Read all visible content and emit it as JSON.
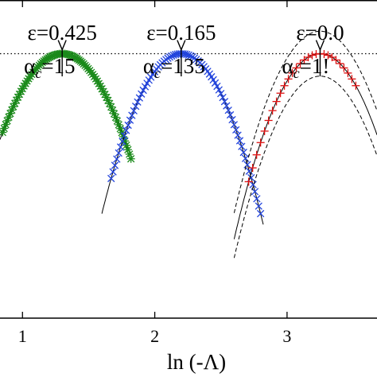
{
  "chart_data": {
    "type": "scatter",
    "title": "",
    "xlabel": "ln (-Λ)",
    "ylabel": "",
    "xlim": [
      0.83,
      3.68
    ],
    "ylim": [
      0,
      1.2
    ],
    "x_ticks": [
      1,
      2,
      3
    ],
    "x_tick_labels": [
      "1",
      "2",
      "3"
    ],
    "reference_line": {
      "y": 1.0,
      "style": "dotted"
    },
    "annotations": [
      {
        "line1": "ε=0.425",
        "line2_sym": "α",
        "line2_sub": "c",
        "line2_rest": "=15",
        "arrow_x": 1.3
      },
      {
        "line1": "ε=0.165",
        "line2_sym": "α",
        "line2_sub": "c",
        "line2_rest": "=135",
        "arrow_x": 2.2
      },
      {
        "line1": "ε=0.0",
        "line2_sym": "α",
        "line2_sub": "c",
        "line2_rest": "=1!",
        "arrow_x": 3.25
      }
    ],
    "series": [
      {
        "marker": "asterisk",
        "color": "#1a8a1a",
        "peak_x": 1.3,
        "peak_y": 1.0,
        "curvature": 1.47,
        "x_from": 0.83,
        "x_to": 1.8,
        "points_from": 0.85,
        "points_to": 1.82,
        "n_points": 85
      },
      {
        "marker": "x",
        "color": "#2244dd",
        "peak_x": 2.2,
        "peak_y": 1.0,
        "curvature": 1.68,
        "x_from": 1.6,
        "x_to": 2.82,
        "points_from": 1.67,
        "points_to": 2.8,
        "n_points": 80
      },
      {
        "marker": "plus",
        "color": "#dd1111",
        "peak_x": 3.25,
        "peak_y": 1.0,
        "curvature": 1.66,
        "x_from": 2.6,
        "x_to": 3.68,
        "points_from": 2.71,
        "points_to": 3.52,
        "n_points": 28,
        "band": {
          "peak_offset": 0.085,
          "curvature_factor": 0.98
        }
      }
    ],
    "fit_curves": {
      "color": "#000000",
      "style": "solid"
    }
  }
}
